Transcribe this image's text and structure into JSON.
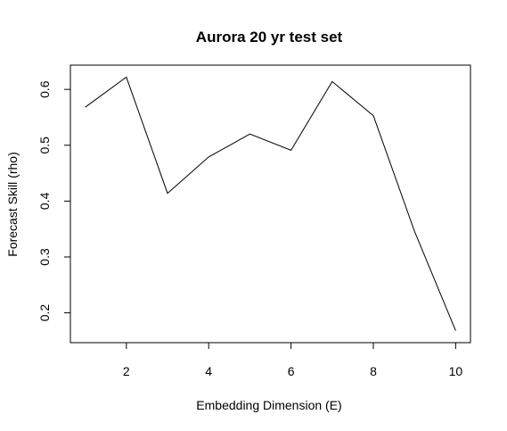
{
  "chart_data": {
    "type": "line",
    "title": "Aurora 20 yr test set",
    "xlabel": "Embedding Dimension (E)",
    "ylabel": "Forecast Skill (rho)",
    "x": [
      1,
      2,
      3,
      4,
      5,
      6,
      7,
      8,
      9,
      10
    ],
    "series": [
      {
        "values": [
          0.568,
          0.622,
          0.414,
          0.479,
          0.52,
          0.491,
          0.614,
          0.553,
          0.346,
          0.168
        ]
      }
    ],
    "xlim": [
      0.64,
      10.36
    ],
    "ylim": [
      0.1466,
      0.6434
    ],
    "xticks": [
      2,
      4,
      6,
      8,
      10
    ],
    "yticks": [
      0.2,
      0.3,
      0.4,
      0.5,
      0.6
    ],
    "xtick_labels": [
      "2",
      "4",
      "6",
      "8",
      "10"
    ],
    "ytick_labels": [
      "0.2",
      "0.3",
      "0.4",
      "0.5",
      "0.6"
    ],
    "line_color": "#000000",
    "grid": false,
    "legend": "none"
  }
}
